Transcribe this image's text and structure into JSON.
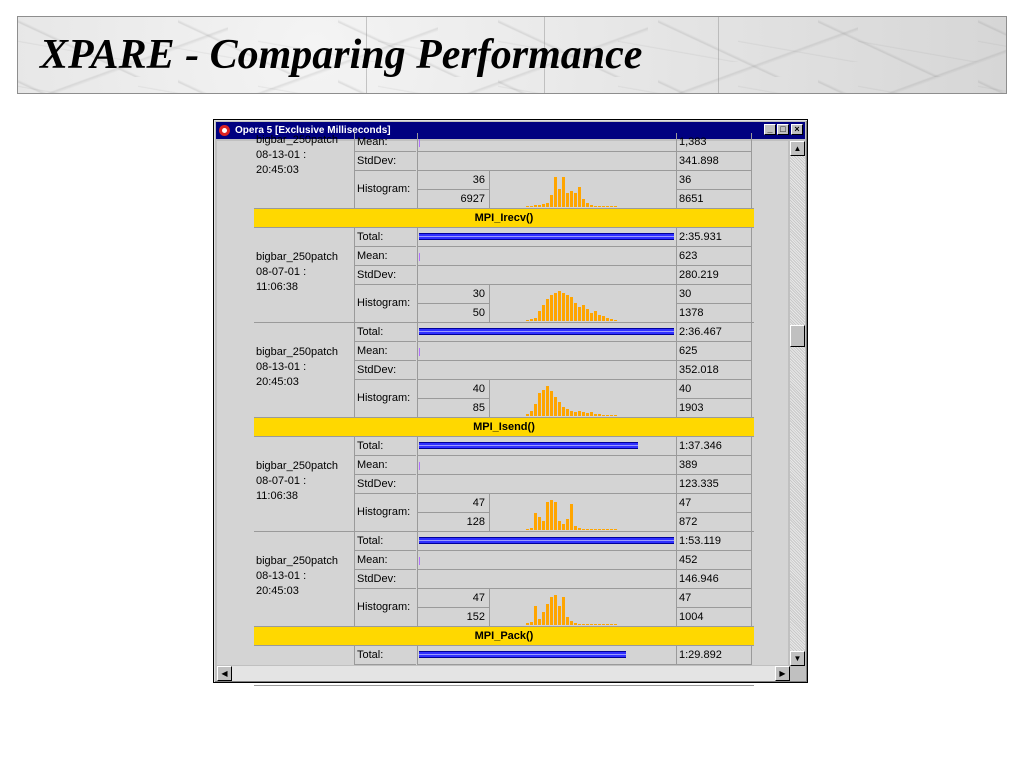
{
  "slide": {
    "title": "XPARE - Comparing Performance"
  },
  "window": {
    "title": "Opera 5 [Exclusive Milliseconds]",
    "buttons": {
      "minimize": "_",
      "maximize": "□",
      "close": "×"
    }
  },
  "labels": {
    "total": "Total:",
    "mean": "Mean:",
    "stddev": "StdDev:",
    "histogram": "Histogram:"
  },
  "partial_top": {
    "run": "bigbar_250patch\n08-13-01 :\n20:45:03",
    "mean_label": "Mean:",
    "mean_value": "1,383",
    "stddev_value": "341.898",
    "hist_min_count": "36",
    "hist_max_count": "6927",
    "hist_val_top": "36",
    "hist_val_bottom": "8651"
  },
  "sections": [
    {
      "func": "MPI_Irecv()",
      "runs": [
        {
          "run": "bigbar_250patch\n08-07-01 :\n11:06:38",
          "total": "2:35.931",
          "total_frac": 1.0,
          "mean": "623",
          "stddev": "280.219",
          "hist_top": "30",
          "hist_bottom": "50",
          "hist_val_top": "30",
          "hist_val_bottom": "1378",
          "hist": [
            1,
            2,
            3,
            10,
            16,
            22,
            26,
            28,
            30,
            28,
            26,
            24,
            18,
            14,
            16,
            12,
            8,
            10,
            6,
            5,
            3,
            2,
            1
          ]
        },
        {
          "run": "bigbar_250patch\n08-13-01 :\n20:45:03",
          "total": "2:36.467",
          "total_frac": 1.0,
          "mean": "625",
          "stddev": "352.018",
          "hist_top": "40",
          "hist_bottom": "85",
          "hist_val_top": "40",
          "hist_val_bottom": "1903",
          "hist": [
            2,
            6,
            14,
            26,
            30,
            34,
            28,
            22,
            16,
            10,
            8,
            6,
            5,
            6,
            4,
            3,
            4,
            2,
            2,
            1,
            1,
            1,
            1
          ]
        }
      ]
    },
    {
      "func": "MPI_Isend()",
      "runs": [
        {
          "run": "bigbar_250patch\n08-07-01 :\n11:06:38",
          "total": "1:37.346",
          "total_frac": 0.86,
          "mean": "389",
          "stddev": "123.335",
          "hist_top": "47",
          "hist_bottom": "128",
          "hist_val_top": "47",
          "hist_val_bottom": "872",
          "hist": [
            1,
            2,
            18,
            14,
            10,
            30,
            32,
            30,
            10,
            6,
            12,
            28,
            4,
            2,
            1,
            1,
            1,
            1,
            1,
            1,
            1,
            1,
            1
          ]
        },
        {
          "run": "bigbar_250patch\n08-13-01 :\n20:45:03",
          "total": "1:53.119",
          "total_frac": 1.0,
          "mean": "452",
          "stddev": "146.946",
          "hist_top": "47",
          "hist_bottom": "152",
          "hist_val_top": "47",
          "hist_val_bottom": "1004",
          "hist": [
            2,
            3,
            20,
            6,
            14,
            22,
            30,
            32,
            20,
            30,
            8,
            4,
            2,
            1,
            1,
            1,
            1,
            1,
            1,
            1,
            1,
            1,
            1
          ]
        }
      ]
    },
    {
      "func": "MPI_Pack()",
      "runs": [
        {
          "total": "1:29.892",
          "total_frac": 0.81
        }
      ]
    }
  ]
}
